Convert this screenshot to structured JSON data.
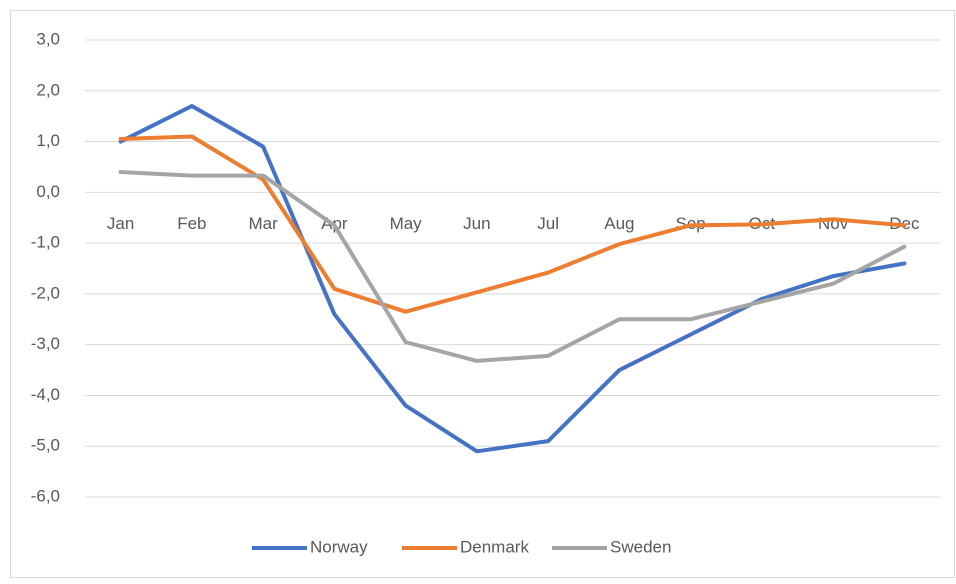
{
  "chart_data": {
    "type": "line",
    "categories": [
      "Jan",
      "Feb",
      "Mar",
      "Apr",
      "May",
      "Jun",
      "Jul",
      "Aug",
      "Sep",
      "Oct",
      "Nov",
      "Dec"
    ],
    "series": [
      {
        "name": "Norway",
        "color": "#4472c4",
        "values": [
          1.0,
          1.7,
          0.9,
          -2.4,
          -4.2,
          -5.1,
          -4.9,
          -3.5,
          -2.8,
          -2.1,
          -1.65,
          -1.4
        ]
      },
      {
        "name": "Denmark",
        "color": "#ed7d31",
        "values": [
          1.05,
          1.1,
          0.25,
          -1.9,
          -2.35,
          -1.97,
          -1.58,
          -1.02,
          -0.65,
          -0.63,
          -0.53,
          -0.65
        ]
      },
      {
        "name": "Sweden",
        "color": "#a5a5a5",
        "values": [
          0.4,
          0.33,
          0.33,
          -0.65,
          -2.95,
          -3.32,
          -3.22,
          -2.5,
          -2.5,
          -2.15,
          -1.8,
          -1.07
        ]
      }
    ],
    "ylim": [
      -6,
      3
    ],
    "yticks": [
      {
        "value": -6,
        "label": "-6,0"
      },
      {
        "value": -5,
        "label": "-5,0"
      },
      {
        "value": -4,
        "label": "-4,0"
      },
      {
        "value": -3,
        "label": "-3,0"
      },
      {
        "value": -2,
        "label": "-2,0"
      },
      {
        "value": -1,
        "label": "-1,0"
      },
      {
        "value": 0,
        "label": "0,0"
      },
      {
        "value": 1,
        "label": "1,0"
      },
      {
        "value": 2,
        "label": "2,0"
      },
      {
        "value": 3,
        "label": "3,0"
      }
    ],
    "grid": true,
    "legend": "bottom"
  }
}
